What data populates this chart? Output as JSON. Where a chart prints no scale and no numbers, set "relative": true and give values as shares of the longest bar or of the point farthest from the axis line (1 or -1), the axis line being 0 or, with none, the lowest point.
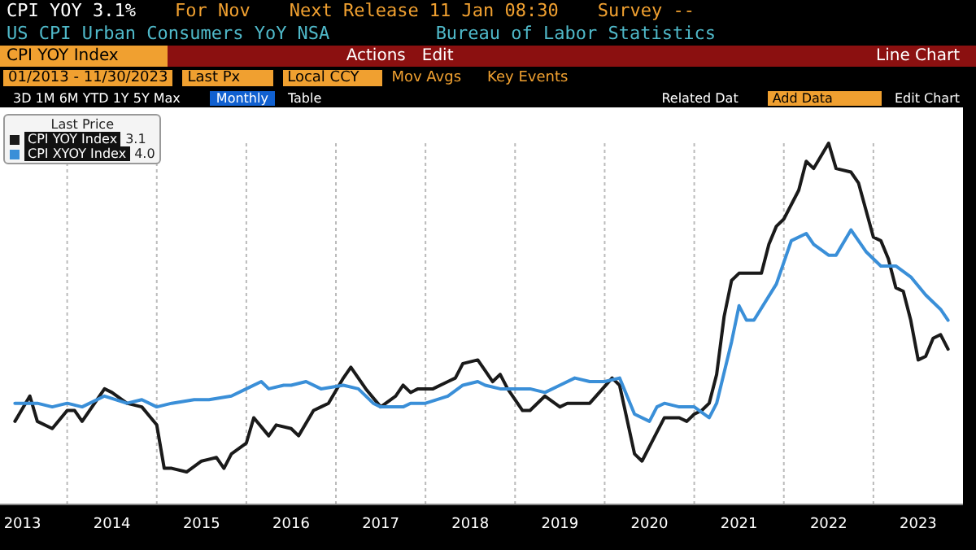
{
  "chart_data": {
    "type": "line",
    "title": "US CPI Urban Consumers YoY NSA",
    "subtitle": "Bureau of Labor Statistics",
    "legend_title": "Last Price",
    "annotations": [
      "CPI YOY 3.1%",
      "For Nov",
      "Next Release 11 Jan 08:30",
      "Survey --",
      "CPI YOY Index",
      "Actions",
      "Edit",
      "Line Chart",
      "01/2013 - 11/30/2023",
      "Last Px",
      "Local CCY",
      "Mov Avgs",
      "Key Events",
      "3D 1M 6M YTD 1Y 5Y Max",
      "Monthly",
      "Table",
      "Related Dat",
      "Add Data",
      "Edit Chart",
      "3.1",
      "4.0"
    ],
    "relative": true,
    "legend": "top left",
    "grid": "x",
    "marker": "none",
    "line_style": "solid",
    "xlim": [
      "2013-04",
      "2024-01"
    ],
    "xticks": [
      {
        "value": "2013-07",
        "label": "2013"
      },
      {
        "value": "2014-01",
        "label": null
      },
      {
        "value": "2014-07",
        "label": "2014"
      },
      {
        "value": "2015-01",
        "label": null
      },
      {
        "value": "2015-07",
        "label": "2015"
      },
      {
        "value": "2016-01",
        "label": null
      },
      {
        "value": "2016-07",
        "label": "2016"
      },
      {
        "value": "2017-01",
        "label": null
      },
      {
        "value": "2017-07",
        "label": "2017"
      },
      {
        "value": "2018-01",
        "label": null
      },
      {
        "value": "2018-07",
        "label": "2018"
      },
      {
        "value": "2019-01",
        "label": null
      },
      {
        "value": "2019-07",
        "label": "2019"
      },
      {
        "value": "2020-01",
        "label": null
      },
      {
        "value": "2020-07",
        "label": "2020"
      },
      {
        "value": "2021-01",
        "label": null
      },
      {
        "value": "2021-07",
        "label": "2021"
      },
      {
        "value": "2022-01",
        "label": null
      },
      {
        "value": "2022-07",
        "label": "2022"
      },
      {
        "value": "2023-01",
        "label": null
      },
      {
        "value": "2023-07",
        "label": "2023"
      }
    ],
    "series": [
      {
        "name": "CPI YOY Index",
        "color": "#1a1a1a",
        "x": [
          "2013-06",
          "2013-08",
          "2013-09",
          "2013-11",
          "2014-01",
          "2014-02",
          "2014-03",
          "2014-06",
          "2014-07",
          "2014-09",
          "2014-11",
          "2015-01",
          "2015-02",
          "2015-03",
          "2015-05",
          "2015-07",
          "2015-09",
          "2015-10",
          "2015-11",
          "2016-01",
          "2016-02",
          "2016-04",
          "2016-05",
          "2016-07",
          "2016-08",
          "2016-10",
          "2016-11",
          "2016-12",
          "2017-02",
          "2017-03",
          "2017-04",
          "2017-05",
          "2017-07",
          "2017-09",
          "2017-10",
          "2017-11",
          "2017-12",
          "2018-02",
          "2018-04",
          "2018-05",
          "2018-06",
          "2018-08",
          "2018-09",
          "2018-10",
          "2018-11",
          "2018-12",
          "2019-02",
          "2019-03",
          "2019-05",
          "2019-07",
          "2019-08",
          "2019-11",
          "2020-02",
          "2020-03",
          "2020-05",
          "2020-06",
          "2020-08",
          "2020-09",
          "2020-11",
          "2020-12",
          "2021-01",
          "2021-02",
          "2021-03",
          "2021-04",
          "2021-05",
          "2021-06",
          "2021-07",
          "2021-09",
          "2021-10",
          "2021-11",
          "2021-12",
          "2022-01",
          "2022-02",
          "2022-03",
          "2022-04",
          "2022-05",
          "2022-07",
          "2022-08",
          "2022-10",
          "2022-11",
          "2023-01",
          "2023-02",
          "2023-03",
          "2023-04",
          "2023-05",
          "2023-06",
          "2023-07",
          "2023-08",
          "2023-09",
          "2023-10",
          "2023-11"
        ],
        "values": [
          0.23,
          0.3,
          0.23,
          0.21,
          0.26,
          0.26,
          0.23,
          0.32,
          0.31,
          0.28,
          0.27,
          0.22,
          0.1,
          0.1,
          0.09,
          0.12,
          0.13,
          0.1,
          0.14,
          0.17,
          0.24,
          0.19,
          0.22,
          0.21,
          0.19,
          0.26,
          0.27,
          0.28,
          0.35,
          0.38,
          0.35,
          0.32,
          0.27,
          0.3,
          0.33,
          0.31,
          0.32,
          0.32,
          0.34,
          0.35,
          0.39,
          0.4,
          0.37,
          0.34,
          0.36,
          0.32,
          0.26,
          0.26,
          0.3,
          0.27,
          0.28,
          0.28,
          0.35,
          0.33,
          0.14,
          0.12,
          0.2,
          0.24,
          0.24,
          0.23,
          0.25,
          0.26,
          0.28,
          0.36,
          0.52,
          0.62,
          0.64,
          0.64,
          0.64,
          0.72,
          0.77,
          0.79,
          0.83,
          0.87,
          0.95,
          0.93,
          1,
          0.93,
          0.92,
          0.89,
          0.74,
          0.73,
          0.68,
          0.6,
          0.59,
          0.51,
          0.4,
          0.41,
          0.46,
          0.47,
          0.43
        ]
      },
      {
        "name": "CPI XYOY Index",
        "color": "#3a8fd8",
        "x": [
          "2013-06",
          "2013-09",
          "2013-11",
          "2014-01",
          "2014-03",
          "2014-06",
          "2014-09",
          "2014-11",
          "2015-01",
          "2015-03",
          "2015-06",
          "2015-08",
          "2015-11",
          "2016-01",
          "2016-03",
          "2016-04",
          "2016-06",
          "2016-07",
          "2016-09",
          "2016-11",
          "2017-02",
          "2017-04",
          "2017-06",
          "2017-07",
          "2017-10",
          "2017-11",
          "2018-01",
          "2018-04",
          "2018-06",
          "2018-08",
          "2018-09",
          "2018-11",
          "2018-12",
          "2019-03",
          "2019-05",
          "2019-07",
          "2019-09",
          "2019-11",
          "2020-01",
          "2020-03",
          "2020-04",
          "2020-05",
          "2020-07",
          "2020-08",
          "2020-09",
          "2020-11",
          "2021-01",
          "2021-03",
          "2021-04",
          "2021-06",
          "2021-07",
          "2021-08",
          "2021-09",
          "2021-12",
          "2022-02",
          "2022-04",
          "2022-05",
          "2022-07",
          "2022-08",
          "2022-10",
          "2022-12",
          "2023-02",
          "2023-04",
          "2023-06",
          "2023-08",
          "2023-10",
          "2023-11"
        ],
        "values": [
          0.28,
          0.28,
          0.27,
          0.28,
          0.27,
          0.3,
          0.28,
          0.29,
          0.27,
          0.28,
          0.29,
          0.29,
          0.3,
          0.32,
          0.34,
          0.32,
          0.33,
          0.33,
          0.34,
          0.32,
          0.33,
          0.32,
          0.28,
          0.27,
          0.27,
          0.28,
          0.28,
          0.3,
          0.33,
          0.34,
          0.33,
          0.32,
          0.32,
          0.32,
          0.31,
          0.33,
          0.35,
          0.34,
          0.34,
          0.35,
          0.3,
          0.25,
          0.23,
          0.27,
          0.28,
          0.27,
          0.27,
          0.24,
          0.28,
          0.45,
          0.55,
          0.51,
          0.51,
          0.61,
          0.73,
          0.75,
          0.72,
          0.69,
          0.69,
          0.76,
          0.7,
          0.66,
          0.66,
          0.63,
          0.58,
          0.54,
          0.51
        ]
      }
    ]
  }
}
